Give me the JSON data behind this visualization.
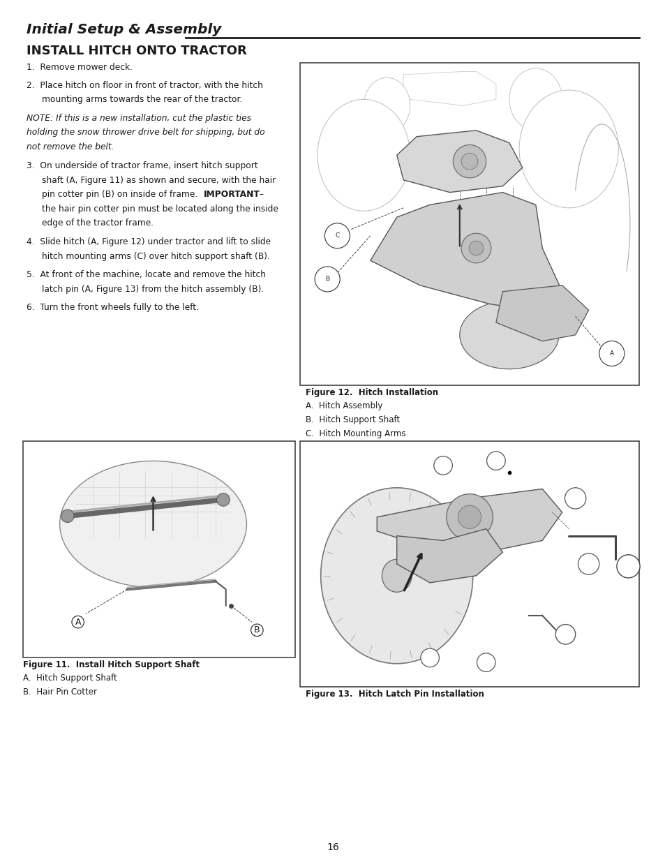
{
  "page_bg": "#ffffff",
  "page_width": 9.54,
  "page_height": 12.35,
  "dpi": 100,
  "ml": 0.38,
  "mr": 0.38,
  "header_title": "Initial Setup & Assembly",
  "section_title": "INSTALL HITCH ONTO TRACTOR",
  "fig12_caption_lines": [
    [
      "bold",
      "Figure 12.  Hitch Installation"
    ],
    [
      "bold",
      "A.  Hitch Assembly"
    ],
    [
      "bold",
      "B.  Hitch Support Shaft"
    ],
    [
      "bold",
      "C.  Hitch Mounting Arms"
    ]
  ],
  "fig11_caption_lines": [
    [
      "bold",
      "Figure 11.  Install Hitch Support Shaft"
    ],
    [
      "bold",
      "A.  Hitch Support Shaft"
    ],
    [
      "bold",
      "B.  Hair Pin Cotter"
    ]
  ],
  "fig13_caption_lines": [
    [
      "bold",
      "Figure 13.  Hitch Latch Pin Installation"
    ]
  ],
  "page_number": "16",
  "tc": "#1a1a1a",
  "border_color": "#333333"
}
